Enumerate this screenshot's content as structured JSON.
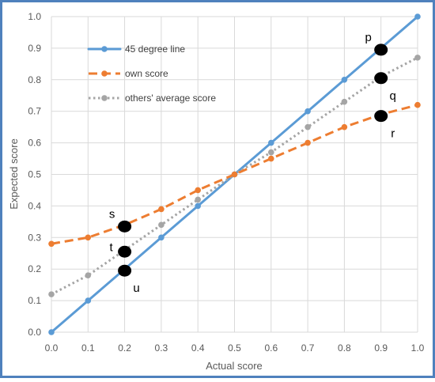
{
  "chart_data": {
    "type": "line",
    "xlabel": "Actual score",
    "ylabel": "Expected score",
    "xlim": [
      0,
      1
    ],
    "ylim": [
      0,
      1
    ],
    "x_ticks": [
      "0.0",
      "0.1",
      "0.2",
      "0.3",
      "0.4",
      "0.5",
      "0.6",
      "0.7",
      "0.8",
      "0.9",
      "1.0"
    ],
    "y_ticks": [
      "0.0",
      "0.1",
      "0.2",
      "0.3",
      "0.4",
      "0.5",
      "0.6",
      "0.7",
      "0.8",
      "0.9",
      "1.0"
    ],
    "grid": true,
    "legend_position": "top-left",
    "series": [
      {
        "name": "45 degree line",
        "color": "#5b9bd5",
        "style": "solid",
        "x": [
          0,
          0.1,
          0.2,
          0.3,
          0.4,
          0.5,
          0.6,
          0.7,
          0.8,
          0.9,
          1.0
        ],
        "y": [
          0,
          0.1,
          0.2,
          0.3,
          0.4,
          0.5,
          0.6,
          0.7,
          0.8,
          0.9,
          1.0
        ]
      },
      {
        "name": "own score",
        "color": "#ed7d31",
        "style": "dashed",
        "x": [
          0,
          0.1,
          0.2,
          0.3,
          0.4,
          0.5,
          0.6,
          0.7,
          0.8,
          0.9,
          1.0
        ],
        "y": [
          0.28,
          0.3,
          0.34,
          0.39,
          0.45,
          0.5,
          0.55,
          0.6,
          0.65,
          0.69,
          0.72
        ]
      },
      {
        "name": "others' average score",
        "color": "#a5a5a5",
        "style": "dotted",
        "x": [
          0,
          0.1,
          0.2,
          0.3,
          0.4,
          0.5,
          0.6,
          0.7,
          0.8,
          0.9,
          1.0
        ],
        "y": [
          0.12,
          0.18,
          0.26,
          0.34,
          0.42,
          0.5,
          0.57,
          0.65,
          0.73,
          0.81,
          0.87
        ]
      }
    ],
    "annotations": [
      {
        "label": "p",
        "x": 0.9,
        "y": 0.895,
        "label_side": "above-left"
      },
      {
        "label": "q",
        "x": 0.9,
        "y": 0.805,
        "label_side": "below-right"
      },
      {
        "label": "r",
        "x": 0.9,
        "y": 0.685,
        "label_side": "below-right"
      },
      {
        "label": "s",
        "x": 0.2,
        "y": 0.335,
        "label_side": "above-left"
      },
      {
        "label": "t",
        "x": 0.2,
        "y": 0.255,
        "label_side": "left"
      },
      {
        "label": "u",
        "x": 0.2,
        "y": 0.195,
        "label_side": "below-right"
      }
    ]
  }
}
